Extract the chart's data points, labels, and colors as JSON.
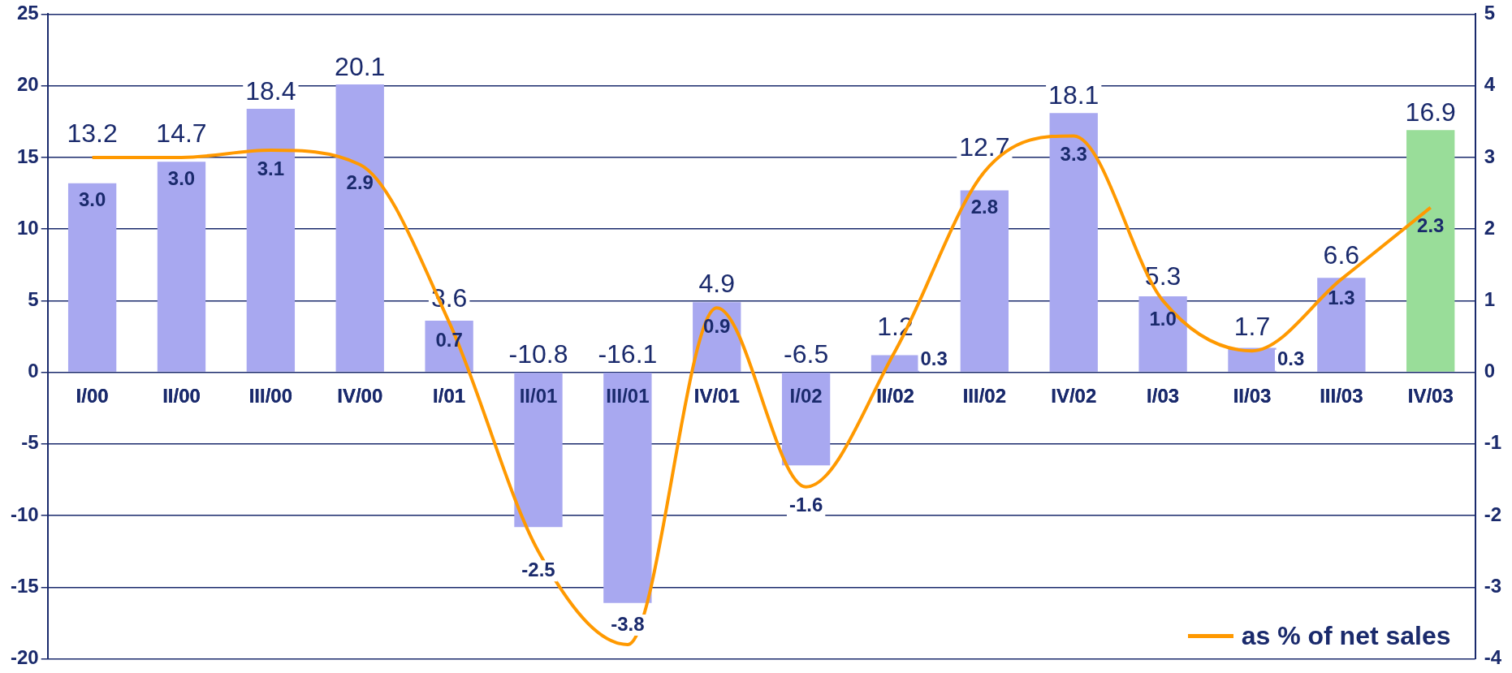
{
  "chart_data": {
    "type": "bar",
    "categories": [
      "I/00",
      "II/00",
      "III/00",
      "IV/00",
      "I/01",
      "II/01",
      "III/01",
      "IV/01",
      "I/02",
      "II/02",
      "III/02",
      "IV/02",
      "I/03",
      "II/03",
      "III/03",
      "IV/03"
    ],
    "series": [
      {
        "colors": [
          "#a8a8f0",
          "#a8a8f0",
          "#a8a8f0",
          "#a8a8f0",
          "#a8a8f0",
          "#a8a8f0",
          "#a8a8f0",
          "#a8a8f0",
          "#a8a8f0",
          "#a8a8f0",
          "#a8a8f0",
          "#a8a8f0",
          "#a8a8f0",
          "#a8a8f0",
          "#a8a8f0",
          "#99dd99"
        ],
        "values": [
          13.2,
          14.7,
          18.4,
          20.1,
          3.6,
          -10.8,
          -16.1,
          4.9,
          -6.5,
          1.2,
          12.7,
          18.1,
          5.3,
          1.7,
          6.6,
          16.9
        ],
        "value_labels": [
          "13.2",
          "14.7",
          "18.4",
          "20.1",
          "3.6",
          "-10.8",
          "-16.1",
          "4.9",
          "-6.5",
          "1.2",
          "12.7",
          "18.1",
          "5.3",
          "1.7",
          "6.6",
          "16.9"
        ]
      },
      {
        "type": "line",
        "name": "as % of net sales",
        "color": "#ff9900",
        "axis": "y2",
        "values": [
          3.0,
          3.0,
          3.1,
          2.9,
          0.7,
          -2.5,
          -3.8,
          0.9,
          -1.6,
          0.3,
          2.8,
          3.3,
          1.0,
          0.3,
          1.3,
          2.3
        ],
        "value_labels": [
          "3.0",
          "3.0",
          "3.1",
          "2.9",
          "0.7",
          "-2.5",
          "-3.8",
          "0.9",
          "-1.6",
          "0.3",
          "2.8",
          "3.3",
          "1.0",
          "0.3",
          "1.3",
          "2.3"
        ]
      }
    ],
    "ylim": [
      -20,
      25
    ],
    "yticks": [
      -20,
      -15,
      -10,
      -5,
      0,
      5,
      10,
      15,
      20,
      25
    ],
    "y2lim": [
      -4,
      5
    ],
    "y2ticks": [
      -4,
      -3,
      -2,
      -1,
      0,
      1,
      2,
      3,
      4,
      5
    ],
    "grid": "y",
    "legend": "bottom right",
    "marker": "none",
    "line_style": "solid"
  }
}
